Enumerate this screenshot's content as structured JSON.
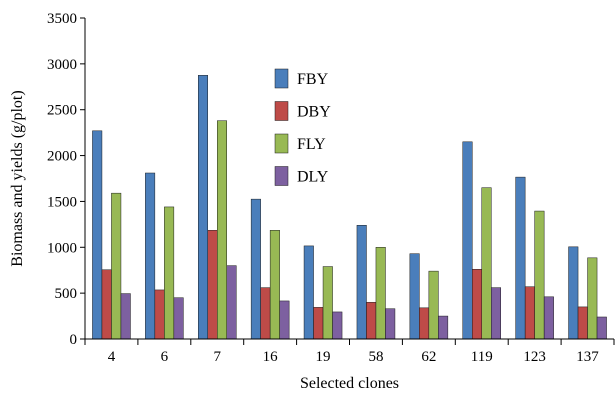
{
  "chart_data": {
    "type": "bar",
    "title": "",
    "xlabel": "Selected clones",
    "ylabel": "Biomass and yields (g/plot)",
    "ylim": [
      0,
      3500
    ],
    "yticks": [
      0,
      500,
      1000,
      1500,
      2000,
      2500,
      3000,
      3500
    ],
    "grid": false,
    "legend_position": "top-center",
    "categories": [
      "4",
      "6",
      "7",
      "16",
      "19",
      "58",
      "62",
      "119",
      "123",
      "137"
    ],
    "series": [
      {
        "name": "FBY",
        "color": "#4a7ebb",
        "values": [
          2270,
          1810,
          2875,
          1525,
          1015,
          1240,
          930,
          2150,
          1765,
          1005
        ]
      },
      {
        "name": "DBY",
        "color": "#be4b48",
        "values": [
          755,
          535,
          1185,
          560,
          345,
          400,
          340,
          760,
          570,
          350
        ]
      },
      {
        "name": "FLY",
        "color": "#98b954",
        "values": [
          1590,
          1440,
          2380,
          1185,
          790,
          1000,
          740,
          1650,
          1395,
          885
        ]
      },
      {
        "name": "DLY",
        "color": "#7d60a0",
        "values": [
          495,
          450,
          800,
          415,
          295,
          330,
          250,
          560,
          460,
          240
        ]
      }
    ]
  }
}
